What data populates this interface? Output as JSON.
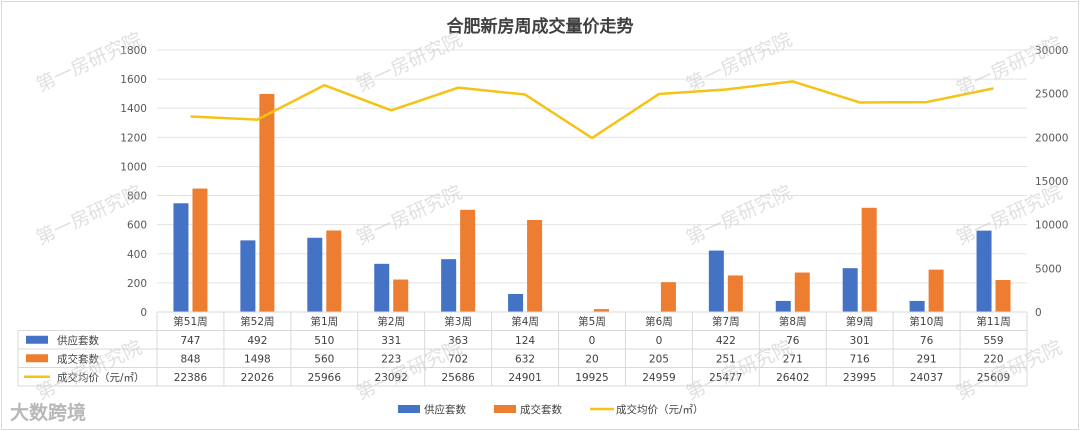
{
  "chart_data": {
    "type": "bar",
    "title": "合肥新房周成交量价走势",
    "categories": [
      "第51周",
      "第52周",
      "第1周",
      "第2周",
      "第3周",
      "第4周",
      "第5周",
      "第6周",
      "第7周",
      "第8周",
      "第9周",
      "第10周",
      "第11周"
    ],
    "series": [
      {
        "name": "供应套数",
        "type": "bar",
        "axis": "left",
        "color": "#4472c4",
        "values": [
          747,
          492,
          510,
          331,
          363,
          124,
          0,
          0,
          422,
          76,
          301,
          76,
          559
        ],
        "labels": [
          "747",
          "492",
          "510",
          "331",
          "363",
          "124",
          "0",
          "0",
          "422",
          "76",
          "301",
          "76",
          "559"
        ]
      },
      {
        "name": "成交套数",
        "type": "bar",
        "axis": "left",
        "color": "#ed7d31",
        "values": [
          848,
          1498,
          560,
          223,
          702,
          632,
          20,
          205,
          251,
          271,
          716,
          291,
          220
        ],
        "labels": [
          "848",
          "1498",
          "560",
          "223",
          "702",
          "632",
          "20",
          "205",
          "251",
          "271",
          "716",
          "291",
          "220"
        ]
      },
      {
        "name": "成交均价（元/㎡）",
        "type": "line",
        "axis": "right",
        "color": "#f5c216",
        "values": [
          22386,
          22026,
          25966,
          23092,
          25686,
          24901,
          19925,
          24959,
          25477,
          26402,
          23995,
          24037,
          25609
        ],
        "labels": [
          "22386",
          "22026",
          "25966",
          "23092",
          "25686",
          "24901",
          "19925",
          "24959",
          "25477",
          "26402",
          "23995",
          "24037",
          "25609"
        ]
      }
    ],
    "y_left": {
      "min": 0,
      "max": 1800,
      "ticks": [
        "0",
        "200",
        "400",
        "600",
        "800",
        "1000",
        "1200",
        "1400",
        "1600",
        "1800"
      ]
    },
    "y_right": {
      "min": 0,
      "max": 30000,
      "ticks": [
        "0",
        "5000",
        "10000",
        "15000",
        "20000",
        "25000",
        "30000"
      ]
    },
    "grid": true,
    "legend_position": "bottom",
    "data_table": true
  },
  "watermark": "第一房研究院",
  "brand": "大数跨境"
}
